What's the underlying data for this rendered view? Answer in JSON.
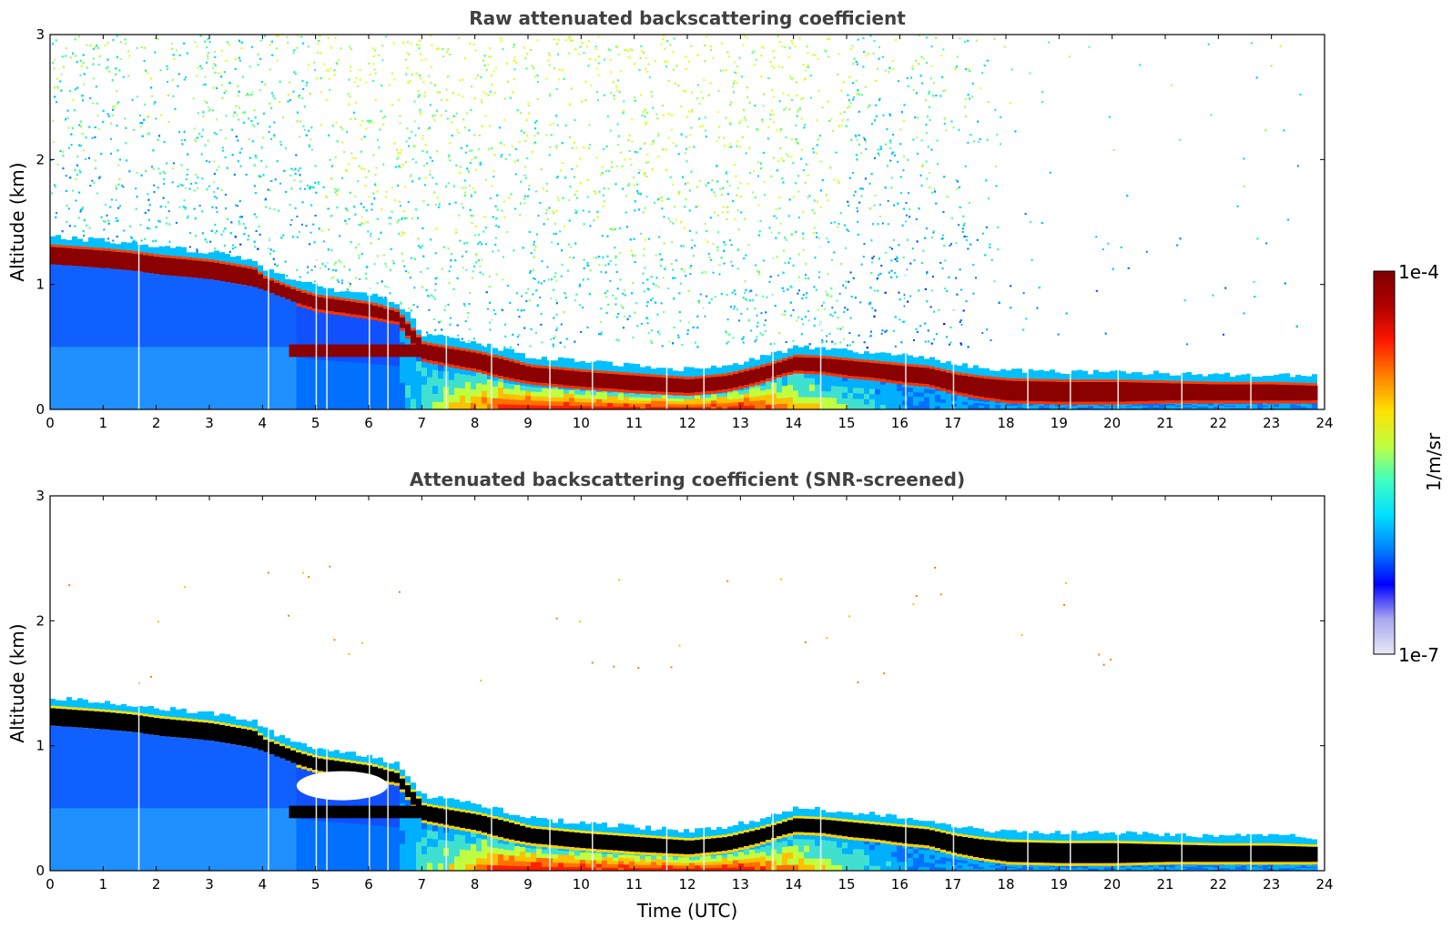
{
  "chart_data": [
    {
      "type": "heatmap",
      "title": "Raw attenuated backscattering coefficient",
      "xlabel": "",
      "ylabel": "Altitude (km)",
      "xlim": [
        0,
        24
      ],
      "ylim": [
        0,
        3
      ],
      "x_ticks": [
        0,
        1,
        2,
        3,
        4,
        5,
        6,
        7,
        8,
        9,
        10,
        11,
        12,
        13,
        14,
        15,
        16,
        17,
        18,
        19,
        20,
        21,
        22,
        23,
        24
      ],
      "y_ticks": [
        0,
        1,
        2,
        3
      ],
      "noise_level": "high",
      "layer_top_km": [
        [
          0,
          1.3
        ],
        [
          1,
          1.27
        ],
        [
          1.5,
          1.25
        ],
        [
          2,
          1.22
        ],
        [
          3,
          1.18
        ],
        [
          3.8,
          1.12
        ],
        [
          4,
          1.05
        ],
        [
          4.6,
          0.95
        ],
        [
          5,
          0.9
        ],
        [
          6,
          0.84
        ],
        [
          6.5,
          0.78
        ],
        [
          7,
          0.52
        ],
        [
          8,
          0.45
        ],
        [
          8.5,
          0.4
        ],
        [
          9,
          0.34
        ],
        [
          10,
          0.3
        ],
        [
          11,
          0.27
        ],
        [
          12,
          0.24
        ],
        [
          12.7,
          0.27
        ],
        [
          13.3,
          0.33
        ],
        [
          13.7,
          0.38
        ],
        [
          14,
          0.42
        ],
        [
          14.5,
          0.41
        ],
        [
          15,
          0.39
        ],
        [
          15.5,
          0.37
        ],
        [
          16,
          0.35
        ],
        [
          16.5,
          0.33
        ],
        [
          17,
          0.28
        ],
        [
          17.5,
          0.25
        ],
        [
          18,
          0.23
        ],
        [
          19,
          0.22
        ],
        [
          20,
          0.22
        ],
        [
          21,
          0.21
        ],
        [
          22,
          0.2
        ],
        [
          23,
          0.2
        ],
        [
          23.8,
          0.19
        ]
      ],
      "layer_bottom_km": [
        [
          0,
          1.16
        ],
        [
          1,
          1.13
        ],
        [
          1.5,
          1.11
        ],
        [
          2,
          1.08
        ],
        [
          3,
          1.04
        ],
        [
          3.8,
          0.98
        ],
        [
          4,
          0.95
        ],
        [
          4.6,
          0.85
        ],
        [
          5,
          0.8
        ],
        [
          6,
          0.74
        ],
        [
          6.5,
          0.7
        ],
        [
          7,
          0.4
        ],
        [
          8,
          0.32
        ],
        [
          8.5,
          0.26
        ],
        [
          9,
          0.22
        ],
        [
          10,
          0.18
        ],
        [
          11,
          0.15
        ],
        [
          12,
          0.13
        ],
        [
          12.7,
          0.16
        ],
        [
          13.3,
          0.22
        ],
        [
          13.7,
          0.28
        ],
        [
          14,
          0.31
        ],
        [
          14.5,
          0.3
        ],
        [
          15,
          0.27
        ],
        [
          15.5,
          0.25
        ],
        [
          16,
          0.22
        ],
        [
          16.5,
          0.2
        ],
        [
          17,
          0.14
        ],
        [
          17.5,
          0.1
        ],
        [
          18,
          0.07
        ],
        [
          19,
          0.06
        ],
        [
          20,
          0.06
        ],
        [
          21,
          0.07
        ],
        [
          22,
          0.07
        ],
        [
          23,
          0.07
        ],
        [
          23.8,
          0.07
        ]
      ]
    },
    {
      "type": "heatmap",
      "title": "Attenuated backscattering coefficient (SNR-screened)",
      "xlabel": "Time (UTC)",
      "ylabel": "Altitude (km)",
      "xlim": [
        0,
        24
      ],
      "ylim": [
        0,
        3
      ],
      "x_ticks": [
        0,
        1,
        2,
        3,
        4,
        5,
        6,
        7,
        8,
        9,
        10,
        11,
        12,
        13,
        14,
        15,
        16,
        17,
        18,
        19,
        20,
        21,
        22,
        23,
        24
      ],
      "y_ticks": [
        0,
        1,
        2,
        3
      ],
      "noise_level": "screened",
      "layer_top_km": [
        [
          0,
          1.3
        ],
        [
          1,
          1.27
        ],
        [
          1.5,
          1.25
        ],
        [
          2,
          1.22
        ],
        [
          3,
          1.18
        ],
        [
          3.8,
          1.12
        ],
        [
          4,
          1.05
        ],
        [
          4.6,
          0.95
        ],
        [
          5,
          0.9
        ],
        [
          6,
          0.84
        ],
        [
          6.5,
          0.78
        ],
        [
          7,
          0.52
        ],
        [
          8,
          0.45
        ],
        [
          8.5,
          0.4
        ],
        [
          9,
          0.34
        ],
        [
          10,
          0.3
        ],
        [
          11,
          0.27
        ],
        [
          12,
          0.24
        ],
        [
          12.7,
          0.27
        ],
        [
          13.3,
          0.33
        ],
        [
          13.7,
          0.38
        ],
        [
          14,
          0.42
        ],
        [
          14.5,
          0.41
        ],
        [
          15,
          0.39
        ],
        [
          15.5,
          0.37
        ],
        [
          16,
          0.35
        ],
        [
          16.5,
          0.33
        ],
        [
          17,
          0.28
        ],
        [
          17.5,
          0.25
        ],
        [
          18,
          0.23
        ],
        [
          19,
          0.22
        ],
        [
          20,
          0.22
        ],
        [
          21,
          0.21
        ],
        [
          22,
          0.2
        ],
        [
          23,
          0.2
        ],
        [
          23.8,
          0.19
        ]
      ],
      "layer_bottom_km": [
        [
          0,
          1.16
        ],
        [
          1,
          1.13
        ],
        [
          1.5,
          1.11
        ],
        [
          2,
          1.08
        ],
        [
          3,
          1.04
        ],
        [
          3.8,
          0.98
        ],
        [
          4,
          0.95
        ],
        [
          4.6,
          0.85
        ],
        [
          5,
          0.8
        ],
        [
          6,
          0.74
        ],
        [
          6.5,
          0.7
        ],
        [
          7,
          0.4
        ],
        [
          8,
          0.32
        ],
        [
          8.5,
          0.26
        ],
        [
          9,
          0.22
        ],
        [
          10,
          0.18
        ],
        [
          11,
          0.15
        ],
        [
          12,
          0.13
        ],
        [
          12.7,
          0.16
        ],
        [
          13.3,
          0.22
        ],
        [
          13.7,
          0.28
        ],
        [
          14,
          0.31
        ],
        [
          14.5,
          0.3
        ],
        [
          15,
          0.27
        ],
        [
          15.5,
          0.25
        ],
        [
          16,
          0.22
        ],
        [
          16.5,
          0.2
        ],
        [
          17,
          0.14
        ],
        [
          17.5,
          0.1
        ],
        [
          18,
          0.07
        ],
        [
          19,
          0.06
        ],
        [
          20,
          0.06
        ],
        [
          21,
          0.07
        ],
        [
          22,
          0.07
        ],
        [
          23,
          0.07
        ],
        [
          23.8,
          0.07
        ]
      ]
    }
  ],
  "colorbar": {
    "label": "1/m/sr",
    "max_label": "1e-4",
    "min_label": "1e-7",
    "scale": "log",
    "range": [
      1e-07,
      0.0001
    ],
    "colormap": "jet",
    "stops": [
      "#e8e8f8",
      "#a8a8f0",
      "#0000ff",
      "#0080ff",
      "#00e0ff",
      "#40ffc0",
      "#c0ff40",
      "#ffe000",
      "#ff8000",
      "#ff1800",
      "#b00000",
      "#800000"
    ]
  },
  "colors": {
    "layer_core_raw": "#8b0000",
    "layer_core_screened": "#000000",
    "boundary_layer_low": "#1060ff",
    "boundary_layer_warm": "#ff6000",
    "title_text": "#404040"
  }
}
